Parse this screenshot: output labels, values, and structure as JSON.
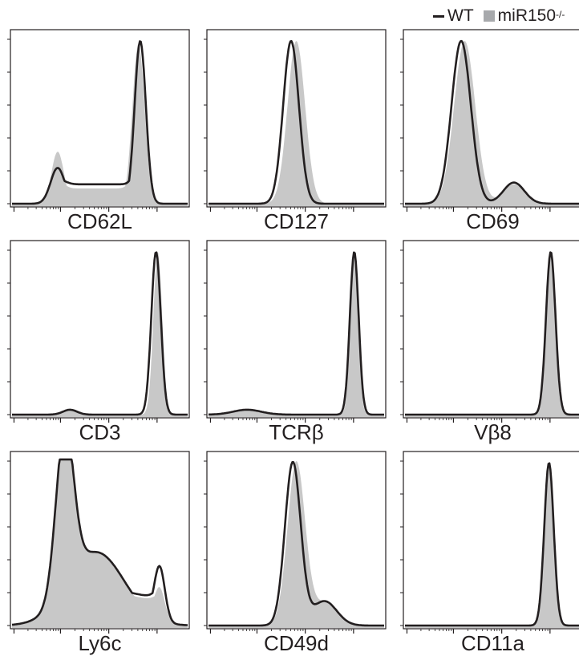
{
  "legend": {
    "wt_label": "WT",
    "ko_label": "miR150",
    "ko_superscript": "-/-",
    "wt_color": "#231f20",
    "ko_color": "#c8c8c8"
  },
  "chart_data": [
    {
      "type": "area",
      "marker": "CD62L",
      "peaks_ko": [
        [
          0.26,
          0.035,
          0.32
        ],
        [
          0.72,
          0.035,
          0.98
        ]
      ],
      "peaks_wt": [
        [
          0.26,
          0.04,
          0.22
        ],
        [
          0.73,
          0.032,
          1.0
        ]
      ],
      "floor_ko": 0.11,
      "floor_wt": 0.14
    },
    {
      "type": "area",
      "marker": "CD127",
      "peaks_ko": [
        [
          0.5,
          0.05,
          1.0
        ]
      ],
      "peaks_wt": [
        [
          0.47,
          0.045,
          1.0
        ]
      ]
    },
    {
      "type": "area",
      "marker": "CD69",
      "peaks_ko": [
        [
          0.34,
          0.06,
          1.0
        ],
        [
          0.62,
          0.06,
          0.12
        ]
      ],
      "peaks_wt": [
        [
          0.32,
          0.055,
          1.0
        ],
        [
          0.62,
          0.06,
          0.13
        ]
      ]
    },
    {
      "type": "area",
      "marker": "CD3",
      "peaks_ko": [
        [
          0.33,
          0.04,
          0.03
        ],
        [
          0.83,
          0.025,
          1.0
        ]
      ],
      "peaks_wt": [
        [
          0.33,
          0.04,
          0.03
        ],
        [
          0.82,
          0.027,
          1.0
        ]
      ]
    },
    {
      "type": "area",
      "marker": "TCRβ",
      "peaks_ko": [
        [
          0.22,
          0.08,
          0.03
        ],
        [
          0.83,
          0.022,
          1.0
        ]
      ],
      "peaks_wt": [
        [
          0.22,
          0.08,
          0.03
        ],
        [
          0.83,
          0.025,
          1.0
        ]
      ]
    },
    {
      "type": "area",
      "marker": "Vβ8",
      "peaks_ko": [
        [
          0.83,
          0.025,
          1.0
        ]
      ],
      "peaks_wt": [
        [
          0.83,
          0.027,
          1.0
        ]
      ]
    },
    {
      "type": "area",
      "marker": "Ly6c",
      "peaks_ko": [
        [
          0.3,
          0.05,
          1.0
        ],
        [
          0.48,
          0.16,
          0.45
        ],
        [
          0.84,
          0.03,
          0.2
        ]
      ],
      "peaks_wt": [
        [
          0.3,
          0.05,
          1.0
        ],
        [
          0.48,
          0.16,
          0.45
        ],
        [
          0.84,
          0.03,
          0.33
        ]
      ],
      "floor_ko": 0.18,
      "floor_wt": 0.2
    },
    {
      "type": "area",
      "marker": "CD49d",
      "peaks_ko": [
        [
          0.5,
          0.05,
          1.0
        ],
        [
          0.66,
          0.07,
          0.14
        ]
      ],
      "peaks_wt": [
        [
          0.48,
          0.045,
          1.0
        ],
        [
          0.66,
          0.07,
          0.15
        ]
      ]
    },
    {
      "type": "area",
      "marker": "CD11a",
      "peaks_ko": [
        [
          0.82,
          0.025,
          1.0
        ]
      ],
      "peaks_wt": [
        [
          0.82,
          0.027,
          1.0
        ]
      ]
    }
  ]
}
